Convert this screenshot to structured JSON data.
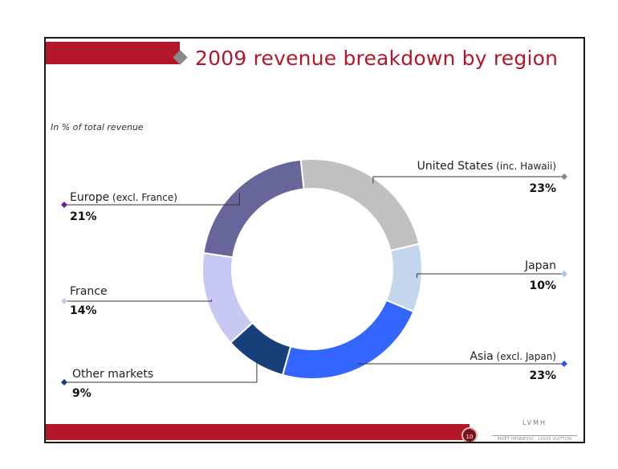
{
  "slide": {
    "title": "2009 revenue breakdown by region",
    "subtitle": "In % of total revenue",
    "page_number": "10",
    "logo": "LVMH",
    "logo_sub": "MOËT HENNESSY . LOUIS VUITTON"
  },
  "chart_data": {
    "type": "pie",
    "title": "2009 revenue breakdown by region",
    "subtitle": "In % of total revenue",
    "slices": [
      {
        "name": "United States",
        "qualifier": "(inc. Hawaii)",
        "value": 23,
        "label": "23%",
        "color": "#c0c0c0"
      },
      {
        "name": "Japan",
        "qualifier": "",
        "value": 10,
        "label": "10%",
        "color": "#c3d6ee"
      },
      {
        "name": "Asia",
        "qualifier": "(excl. Japan)",
        "value": 23,
        "label": "23%",
        "color": "#3366ff"
      },
      {
        "name": "Other markets",
        "qualifier": "",
        "value": 9,
        "label": "9%",
        "color": "#173f7a"
      },
      {
        "name": "France",
        "qualifier": "",
        "value": 14,
        "label": "14%",
        "color": "#c8c8f4"
      },
      {
        "name": "Europe",
        "qualifier": "(excl. France)",
        "value": 21,
        "label": "21%",
        "color": "#66669a"
      }
    ],
    "marker_colors": [
      "#8a8a8a",
      "#a8c8ee",
      "#2255ee",
      "#1a3a7a",
      "#c8c8f0",
      "#6a1aaa"
    ]
  }
}
